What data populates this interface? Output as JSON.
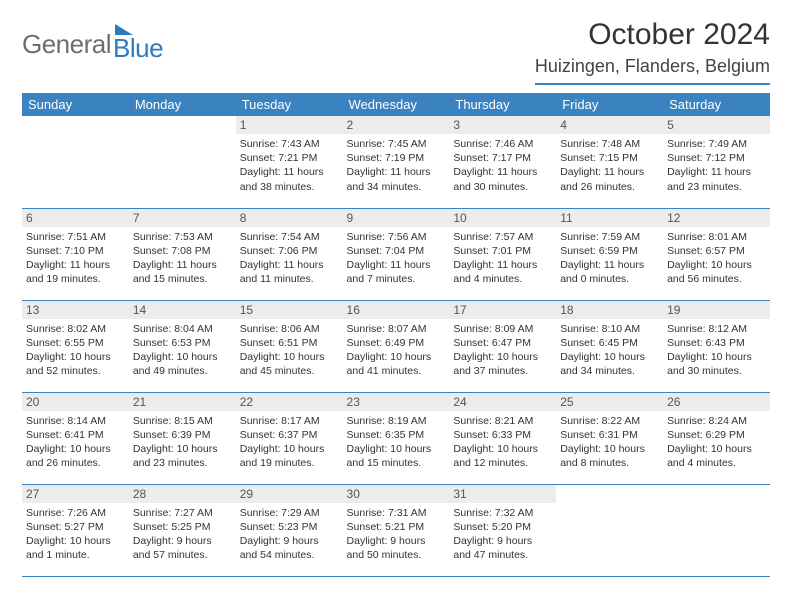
{
  "brand": {
    "part1": "General",
    "part2": "Blue"
  },
  "title": "October 2024",
  "location": "Huizingen, Flanders, Belgium",
  "colors": {
    "accent": "#3b83c0",
    "header_bg": "#3b83c0",
    "daynum_bg": "#ececec"
  },
  "weekdays": [
    "Sunday",
    "Monday",
    "Tuesday",
    "Wednesday",
    "Thursday",
    "Friday",
    "Saturday"
  ],
  "weeks": [
    [
      null,
      null,
      {
        "n": "1",
        "sr": "7:43 AM",
        "ss": "7:21 PM",
        "dl": "11 hours and 38 minutes."
      },
      {
        "n": "2",
        "sr": "7:45 AM",
        "ss": "7:19 PM",
        "dl": "11 hours and 34 minutes."
      },
      {
        "n": "3",
        "sr": "7:46 AM",
        "ss": "7:17 PM",
        "dl": "11 hours and 30 minutes."
      },
      {
        "n": "4",
        "sr": "7:48 AM",
        "ss": "7:15 PM",
        "dl": "11 hours and 26 minutes."
      },
      {
        "n": "5",
        "sr": "7:49 AM",
        "ss": "7:12 PM",
        "dl": "11 hours and 23 minutes."
      }
    ],
    [
      {
        "n": "6",
        "sr": "7:51 AM",
        "ss": "7:10 PM",
        "dl": "11 hours and 19 minutes."
      },
      {
        "n": "7",
        "sr": "7:53 AM",
        "ss": "7:08 PM",
        "dl": "11 hours and 15 minutes."
      },
      {
        "n": "8",
        "sr": "7:54 AM",
        "ss": "7:06 PM",
        "dl": "11 hours and 11 minutes."
      },
      {
        "n": "9",
        "sr": "7:56 AM",
        "ss": "7:04 PM",
        "dl": "11 hours and 7 minutes."
      },
      {
        "n": "10",
        "sr": "7:57 AM",
        "ss": "7:01 PM",
        "dl": "11 hours and 4 minutes."
      },
      {
        "n": "11",
        "sr": "7:59 AM",
        "ss": "6:59 PM",
        "dl": "11 hours and 0 minutes."
      },
      {
        "n": "12",
        "sr": "8:01 AM",
        "ss": "6:57 PM",
        "dl": "10 hours and 56 minutes."
      }
    ],
    [
      {
        "n": "13",
        "sr": "8:02 AM",
        "ss": "6:55 PM",
        "dl": "10 hours and 52 minutes."
      },
      {
        "n": "14",
        "sr": "8:04 AM",
        "ss": "6:53 PM",
        "dl": "10 hours and 49 minutes."
      },
      {
        "n": "15",
        "sr": "8:06 AM",
        "ss": "6:51 PM",
        "dl": "10 hours and 45 minutes."
      },
      {
        "n": "16",
        "sr": "8:07 AM",
        "ss": "6:49 PM",
        "dl": "10 hours and 41 minutes."
      },
      {
        "n": "17",
        "sr": "8:09 AM",
        "ss": "6:47 PM",
        "dl": "10 hours and 37 minutes."
      },
      {
        "n": "18",
        "sr": "8:10 AM",
        "ss": "6:45 PM",
        "dl": "10 hours and 34 minutes."
      },
      {
        "n": "19",
        "sr": "8:12 AM",
        "ss": "6:43 PM",
        "dl": "10 hours and 30 minutes."
      }
    ],
    [
      {
        "n": "20",
        "sr": "8:14 AM",
        "ss": "6:41 PM",
        "dl": "10 hours and 26 minutes."
      },
      {
        "n": "21",
        "sr": "8:15 AM",
        "ss": "6:39 PM",
        "dl": "10 hours and 23 minutes."
      },
      {
        "n": "22",
        "sr": "8:17 AM",
        "ss": "6:37 PM",
        "dl": "10 hours and 19 minutes."
      },
      {
        "n": "23",
        "sr": "8:19 AM",
        "ss": "6:35 PM",
        "dl": "10 hours and 15 minutes."
      },
      {
        "n": "24",
        "sr": "8:21 AM",
        "ss": "6:33 PM",
        "dl": "10 hours and 12 minutes."
      },
      {
        "n": "25",
        "sr": "8:22 AM",
        "ss": "6:31 PM",
        "dl": "10 hours and 8 minutes."
      },
      {
        "n": "26",
        "sr": "8:24 AM",
        "ss": "6:29 PM",
        "dl": "10 hours and 4 minutes."
      }
    ],
    [
      {
        "n": "27",
        "sr": "7:26 AM",
        "ss": "5:27 PM",
        "dl": "10 hours and 1 minute."
      },
      {
        "n": "28",
        "sr": "7:27 AM",
        "ss": "5:25 PM",
        "dl": "9 hours and 57 minutes."
      },
      {
        "n": "29",
        "sr": "7:29 AM",
        "ss": "5:23 PM",
        "dl": "9 hours and 54 minutes."
      },
      {
        "n": "30",
        "sr": "7:31 AM",
        "ss": "5:21 PM",
        "dl": "9 hours and 50 minutes."
      },
      {
        "n": "31",
        "sr": "7:32 AM",
        "ss": "5:20 PM",
        "dl": "9 hours and 47 minutes."
      },
      null,
      null
    ]
  ],
  "labels": {
    "sunrise": "Sunrise:",
    "sunset": "Sunset:",
    "daylight": "Daylight:"
  }
}
